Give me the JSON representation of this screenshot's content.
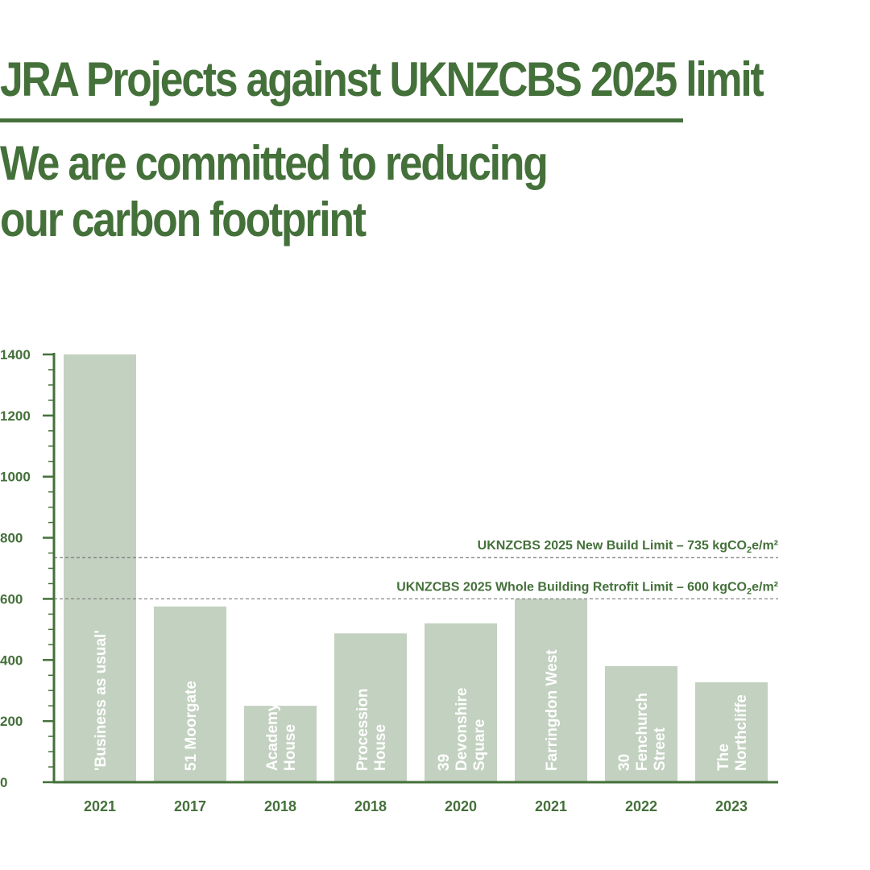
{
  "header": {
    "title": "JRA Projects against UKNZCBS 2025 limit",
    "subtitle_lines": [
      "We are committed to reducing",
      "our carbon footprint"
    ]
  },
  "colors": {
    "accent": "#44703a",
    "bar": "#c3d1c0",
    "bar_text": "#ffffff"
  },
  "chart_data": {
    "type": "bar",
    "ylim": [
      0,
      1400
    ],
    "yticks": [
      0,
      200,
      400,
      600,
      800,
      1000,
      1200,
      1400
    ],
    "grid": false,
    "bars": [
      {
        "name_lines": [
          "'Business as usual'"
        ],
        "year": "2021",
        "value": 1400
      },
      {
        "name_lines": [
          "51 Moorgate"
        ],
        "year": "2017",
        "value": 575
      },
      {
        "name_lines": [
          "Academy",
          "House"
        ],
        "year": "2018",
        "value": 250
      },
      {
        "name_lines": [
          "Procession",
          "House"
        ],
        "year": "2018",
        "value": 487
      },
      {
        "name_lines": [
          "39",
          "Devonshire",
          "Square"
        ],
        "year": "2020",
        "value": 520
      },
      {
        "name_lines": [
          "Farringdon West"
        ],
        "year": "2021",
        "value": 600
      },
      {
        "name_lines": [
          "30",
          "Fenchurch",
          "Street"
        ],
        "year": "2022",
        "value": 380
      },
      {
        "name_lines": [
          "The",
          "Northcliffe"
        ],
        "year": "2023",
        "value": 327
      }
    ],
    "limits": [
      {
        "label": "UKNZCBS 2025 New Build Limit – 735 kgCO",
        "sub": "2",
        "unit": "e/m²",
        "value": 735
      },
      {
        "label": "UKNZCBS 2025 Whole Building Retrofit Limit – 600 kgCO",
        "sub": "2",
        "unit": "e/m²",
        "value": 600
      }
    ]
  }
}
